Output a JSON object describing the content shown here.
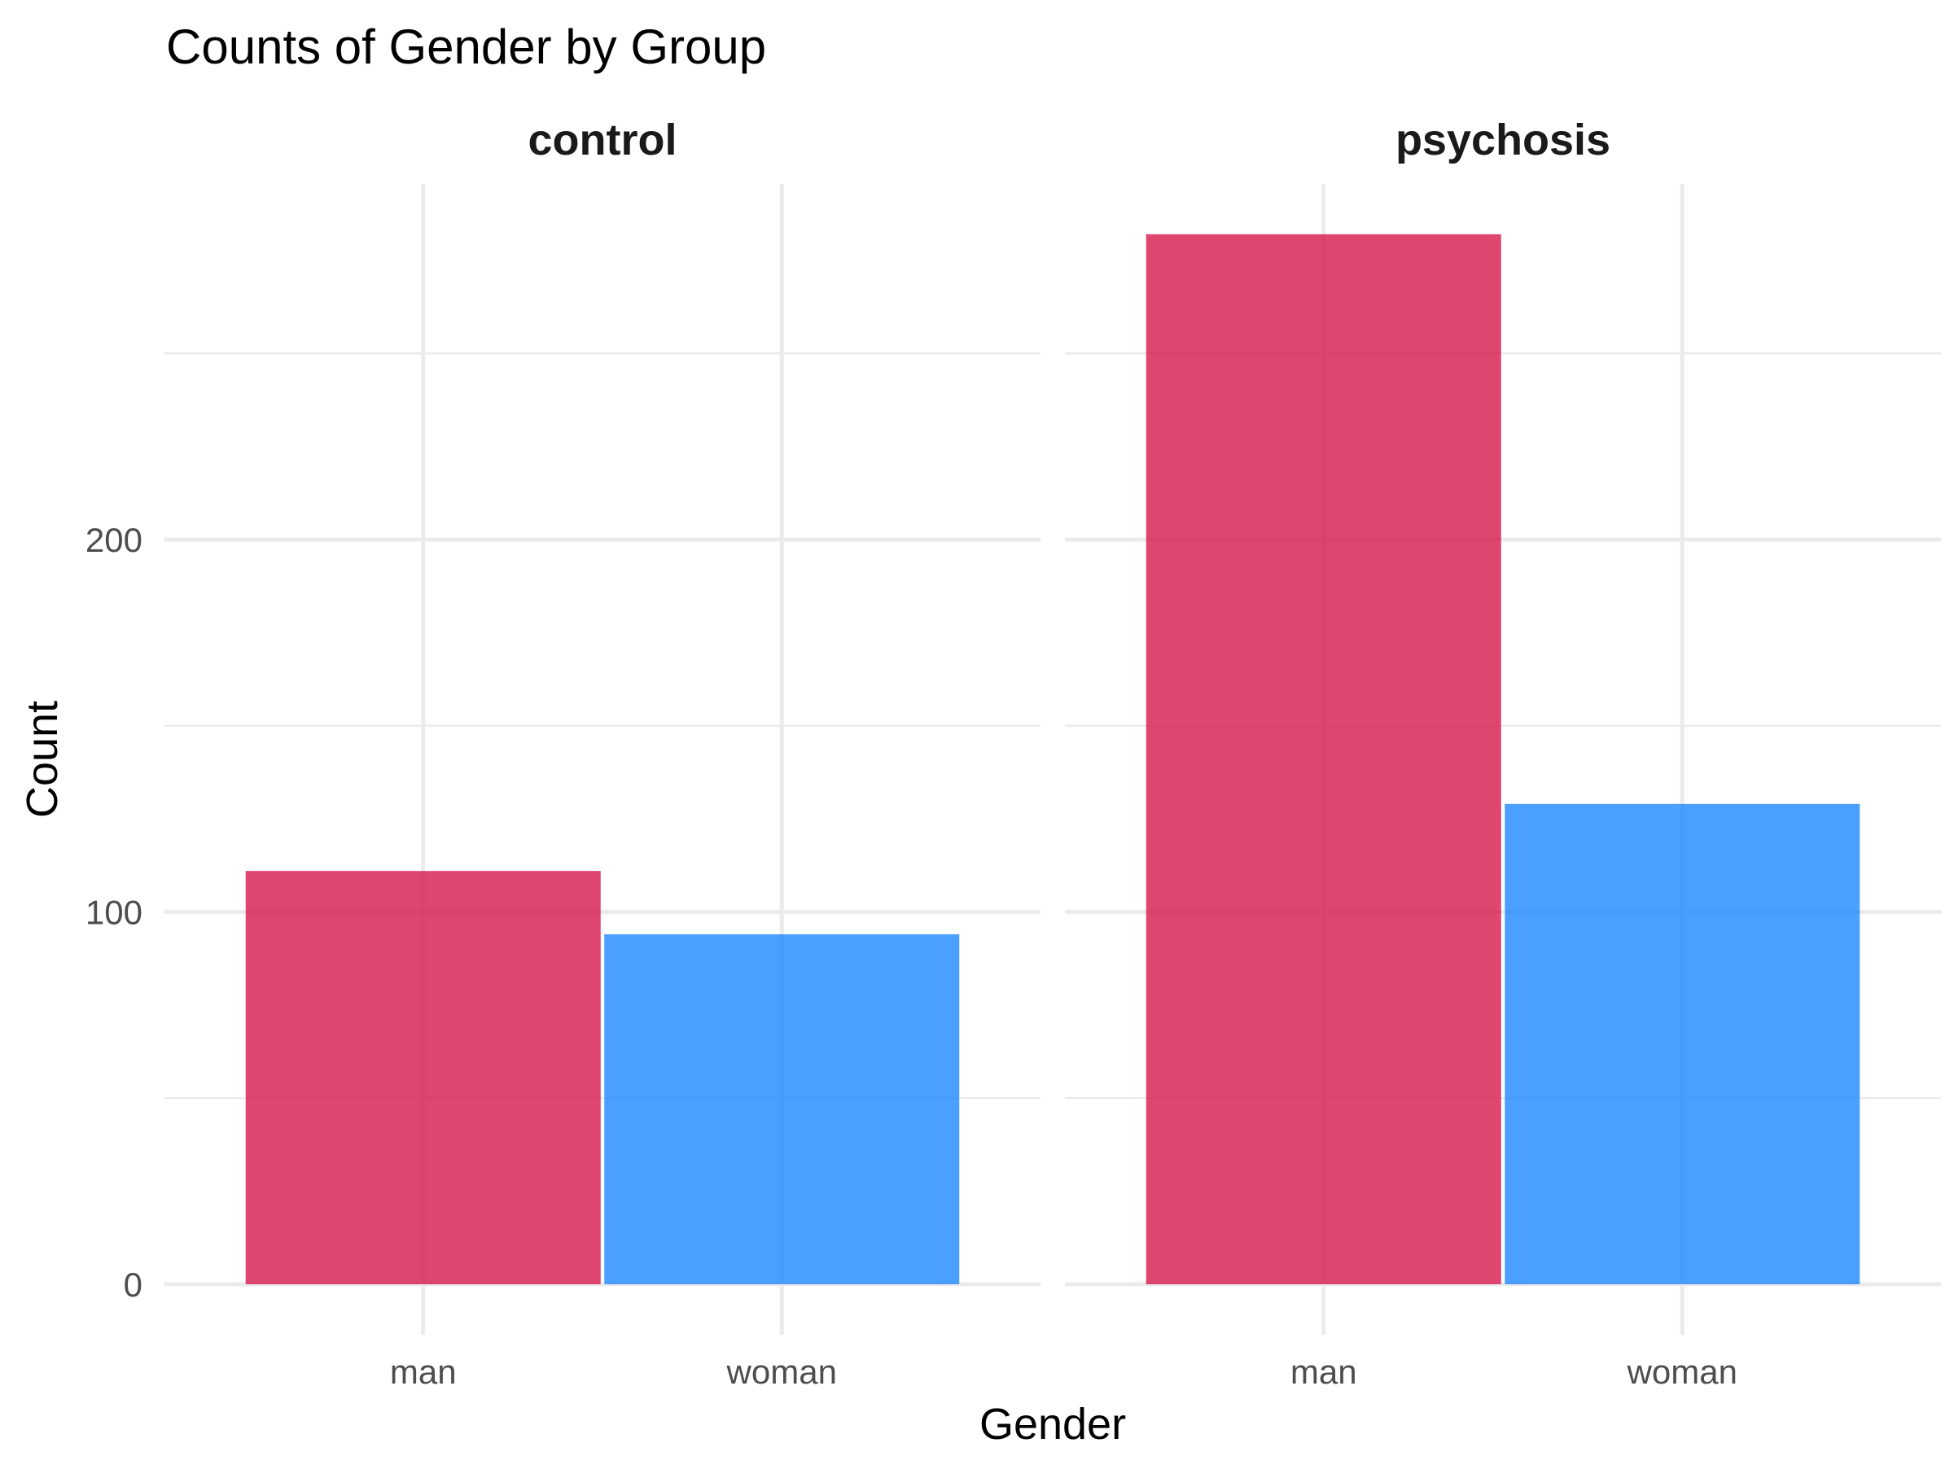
{
  "chart_data": {
    "type": "bar",
    "title": "Counts of Gender by Group",
    "xlabel": "Gender",
    "ylabel": "Count",
    "ylim": [
      0,
      300
    ],
    "y_ticks": [
      0,
      100,
      200
    ],
    "grid": true,
    "facets": [
      {
        "label": "control",
        "categories": [
          "man",
          "woman"
        ],
        "values": [
          111,
          94
        ]
      },
      {
        "label": "psychosis",
        "categories": [
          "man",
          "woman"
        ],
        "values": [
          282,
          129
        ]
      }
    ],
    "colors": {
      "man": "#D6164B",
      "woman": "#1E88FF"
    }
  }
}
